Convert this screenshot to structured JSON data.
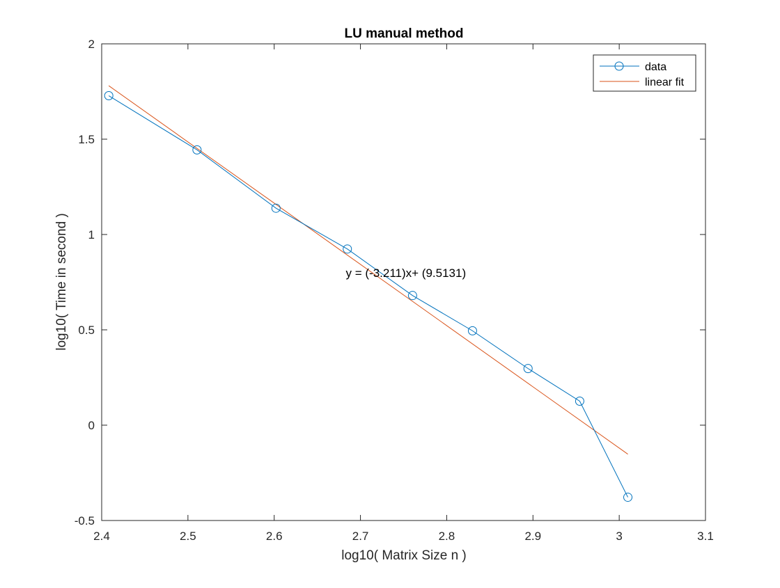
{
  "chart_data": {
    "type": "line",
    "title": "LU manual method",
    "xlabel": "log10( Matrix Size n )",
    "ylabel": "log10( Time in second )",
    "xlim": [
      2.4,
      3.1
    ],
    "ylim": [
      -0.5,
      2
    ],
    "xticks": [
      "2.4",
      "2.5",
      "2.6",
      "2.7",
      "2.8",
      "2.9",
      "3",
      "3.1"
    ],
    "xtick_values": [
      2.4,
      2.5,
      2.6,
      2.7,
      2.8,
      2.9,
      3.0,
      3.1
    ],
    "yticks": [
      "-0.5",
      "0",
      "0.5",
      "1",
      "1.5",
      "2"
    ],
    "ytick_values": [
      -0.5,
      0,
      0.5,
      1,
      1.5,
      2
    ],
    "grid": false,
    "legend_position": "top-right",
    "series": [
      {
        "name": "data",
        "style": "line-with-circle-markers",
        "color": "#0072BD",
        "x": [
          2.4082,
          2.5105,
          2.6021,
          2.6848,
          2.7604,
          2.8299,
          2.8943,
          2.9542,
          3.01
        ],
        "y": [
          1.728,
          1.444,
          1.138,
          0.924,
          0.68,
          0.495,
          0.297,
          0.126,
          -0.378
        ]
      },
      {
        "name": "linear fit",
        "style": "line",
        "color": "#D95319",
        "x": [
          2.4082,
          3.01
        ],
        "y": [
          1.7803,
          -0.1521
        ]
      }
    ],
    "annotation": {
      "text": "y = (-3.211)x+ (9.5131)",
      "x": 2.683,
      "y": 0.8
    }
  }
}
